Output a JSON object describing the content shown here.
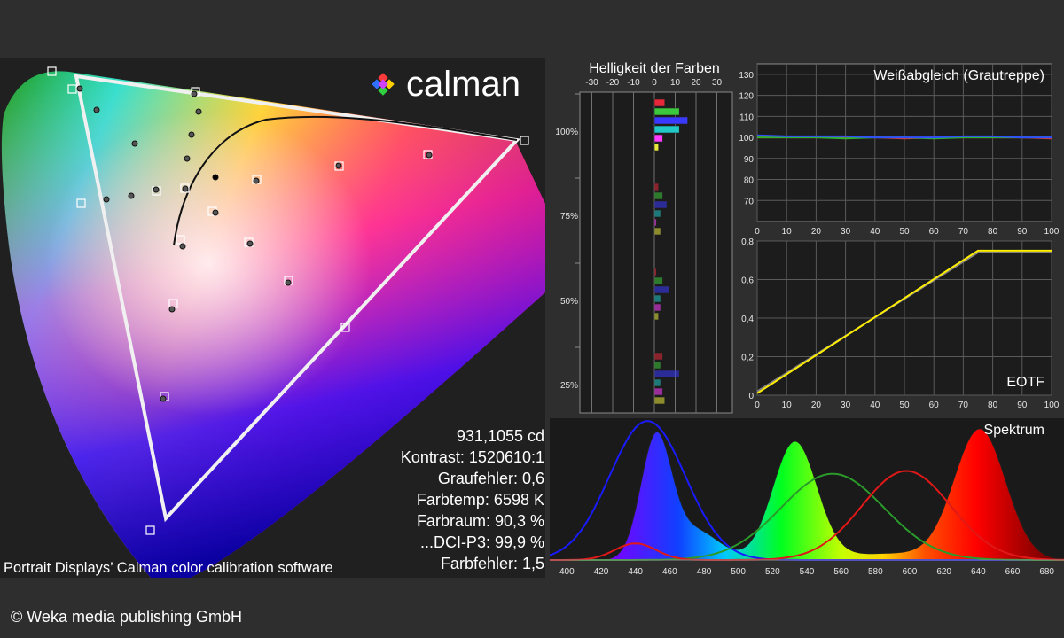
{
  "logo": {
    "text": "calman"
  },
  "cie": {
    "caption": "Portrait Displays’ Calman color calibration software",
    "stats": [
      "931,1055 cd",
      "Kontrast: 1520610:1",
      "Graufehler: 0,6",
      "Farbtemp: 6598 K",
      "Farbraum: 90,3 %",
      "...DCI-P3: 99,9 %",
      "Farbfehler: 1,5"
    ]
  },
  "luminance": {
    "title": "Helligkeit der Farben",
    "xticks": [
      "-30",
      "-20",
      "-10",
      "0",
      "10",
      "20",
      "30"
    ],
    "groups": [
      {
        "label": "100%",
        "values": [
          5,
          12,
          16,
          12,
          4,
          2
        ]
      },
      {
        "label": "75%",
        "values": [
          2,
          4,
          6,
          3,
          1,
          3
        ]
      },
      {
        "label": "50%",
        "values": [
          1,
          4,
          7,
          3,
          3,
          2
        ]
      },
      {
        "label": "25%",
        "values": [
          4,
          3,
          12,
          3,
          4,
          5
        ]
      }
    ],
    "colors": [
      "#e8283a",
      "#3cc83c",
      "#3a3aff",
      "#20c8c8",
      "#ff3cff",
      "#e8e83c"
    ]
  },
  "chart_data": [
    {
      "type": "line",
      "title": "Weißabgleich (Grautreppe)",
      "x": [
        0,
        10,
        20,
        30,
        40,
        50,
        60,
        70,
        80,
        90,
        100
      ],
      "xlim": [
        0,
        100
      ],
      "ylim": [
        60,
        135
      ],
      "yticks": [
        70,
        80,
        90,
        100,
        110,
        120,
        130
      ],
      "series": [
        {
          "color": "#e03030",
          "values": [
            100,
            100,
            100,
            100,
            100,
            99.5,
            100,
            100,
            100,
            100,
            99.5
          ]
        },
        {
          "color": "#30b030",
          "values": [
            100,
            100,
            100,
            99.5,
            100,
            100,
            99.5,
            100,
            100,
            100,
            100
          ]
        },
        {
          "color": "#3050ff",
          "values": [
            101,
            100.5,
            100.5,
            100.5,
            100,
            100,
            100,
            100.5,
            100.5,
            100,
            100
          ]
        }
      ]
    },
    {
      "type": "line",
      "title": "EOTF",
      "x": [
        0,
        75,
        100
      ],
      "xlim": [
        0,
        100
      ],
      "ylim": [
        0,
        0.8
      ],
      "yticks": [
        "0",
        "0,2",
        "0,4",
        "0,6",
        "0,8"
      ],
      "series": [
        {
          "color": "#808080",
          "values": [
            0.02,
            0.74,
            0.74
          ]
        },
        {
          "color": "#ffee00",
          "values": [
            0.01,
            0.75,
            0.75
          ]
        }
      ]
    },
    {
      "type": "line",
      "title": "Spektrum",
      "xlim": [
        390,
        690
      ],
      "xticks": [
        400,
        420,
        440,
        460,
        480,
        500,
        520,
        540,
        560,
        580,
        600,
        620,
        640,
        660,
        680
      ],
      "series": [
        {
          "color": "#1a1aff",
          "peak": 447,
          "width": 22,
          "height": 1.0
        },
        {
          "color": "#2a9a2a",
          "peak": 555,
          "width": 30,
          "height": 0.62
        },
        {
          "color": "#e01818",
          "peak": 598,
          "width": 26,
          "height": 0.64
        }
      ]
    }
  ],
  "footer": {
    "copyright": "© Weka media publishing GmbH"
  }
}
